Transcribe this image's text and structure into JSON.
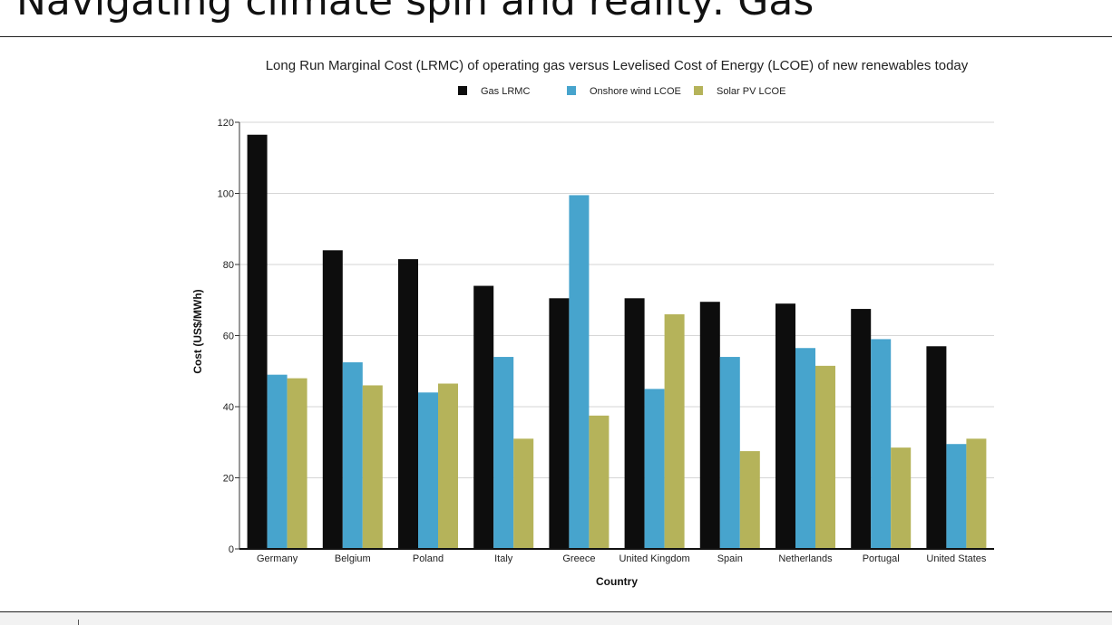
{
  "slide": {
    "title": "Navigating climate spin and reality: Gas"
  },
  "chart_data": {
    "type": "bar",
    "title": "Long Run Marginal Cost (LRMC) of operating gas versus Levelised Cost of Energy (LCOE) of new renewables today",
    "xlabel": "Country",
    "ylabel": "Cost (US$/MWh)",
    "ylim": [
      0,
      120
    ],
    "yticks": [
      0,
      20,
      40,
      60,
      80,
      100,
      120
    ],
    "grid": true,
    "legend_position": "top-center",
    "categories": [
      "Germany",
      "Belgium",
      "Poland",
      "Italy",
      "Greece",
      "United Kingdom",
      "Spain",
      "Netherlands",
      "Portugal",
      "United States"
    ],
    "series": [
      {
        "name": "Gas LRMC",
        "color": "#0d0d0d",
        "values": [
          116.5,
          84,
          81.5,
          74,
          70.5,
          70.5,
          69.5,
          69,
          67.5,
          57
        ]
      },
      {
        "name": "Onshore wind LCOE",
        "color": "#47a4cd",
        "values": [
          49,
          52.5,
          44,
          54,
          99.5,
          45,
          54,
          56.5,
          59,
          29.5
        ]
      },
      {
        "name": "Solar PV LCOE",
        "color": "#b5b35a",
        "values": [
          48,
          46,
          46.5,
          31,
          37.5,
          66,
          27.5,
          51.5,
          28.5,
          31
        ]
      }
    ]
  }
}
